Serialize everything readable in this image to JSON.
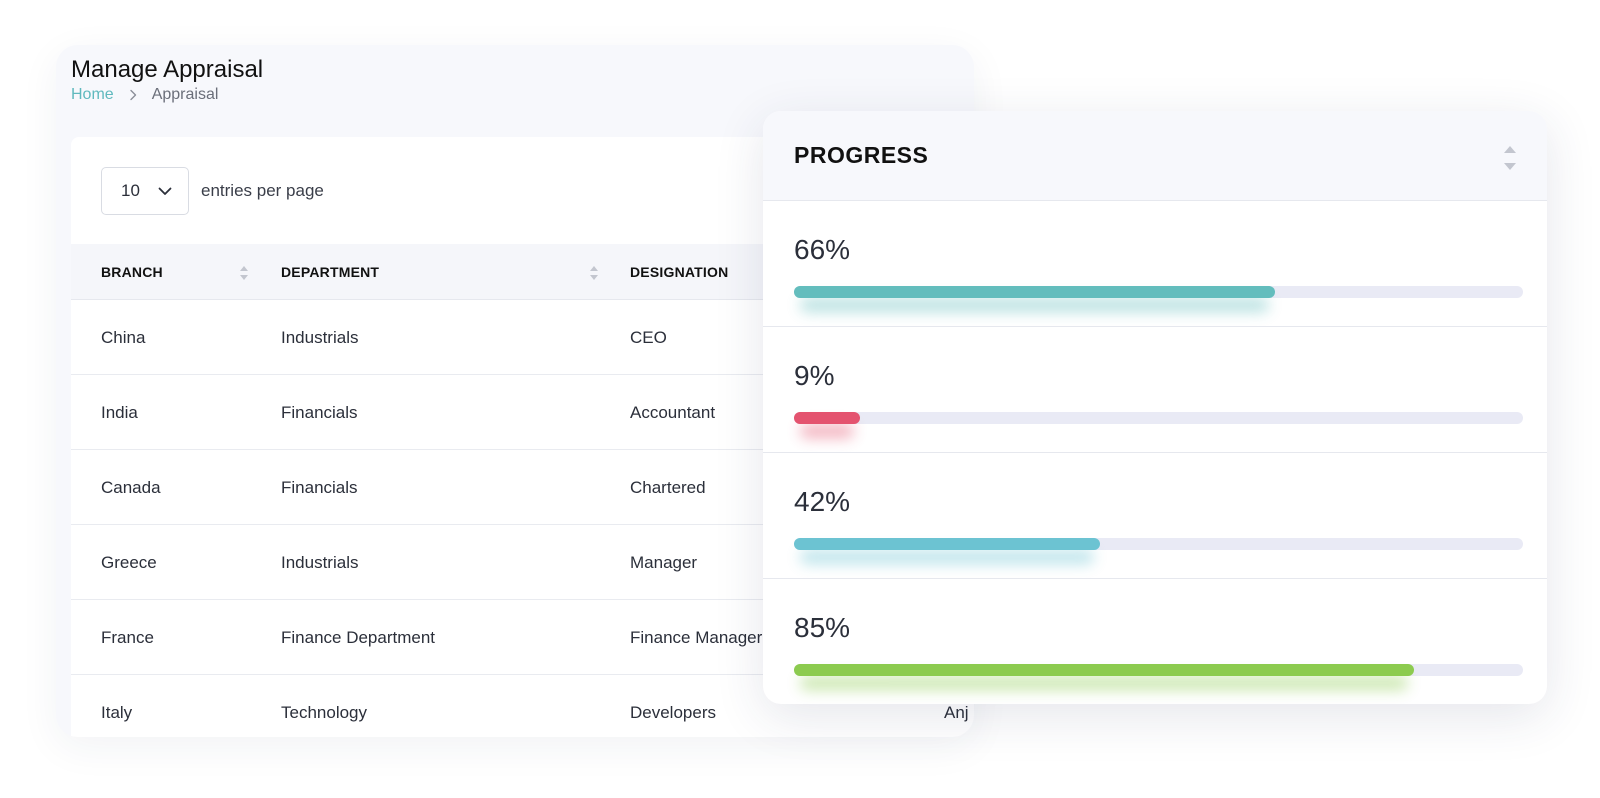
{
  "page": {
    "title": "Manage Appraisal",
    "breadcrumb": {
      "home": "Home",
      "current": "Appraisal"
    }
  },
  "entries": {
    "value": "10",
    "label": "entries per page"
  },
  "table": {
    "columns": [
      "BRANCH",
      "DEPARTMENT",
      "DESIGNATION"
    ],
    "rows": [
      {
        "branch": "China",
        "department": "Industrials",
        "designation": "CEO",
        "extra": ""
      },
      {
        "branch": "India",
        "department": "Financials",
        "designation": "Accountant",
        "extra": ""
      },
      {
        "branch": "Canada",
        "department": "Financials",
        "designation": "Chartered",
        "extra": ""
      },
      {
        "branch": "Greece",
        "department": "Industrials",
        "designation": "Manager",
        "extra": ""
      },
      {
        "branch": "France",
        "department": "Finance Department",
        "designation": "Finance Manager",
        "extra": ""
      },
      {
        "branch": "Italy",
        "department": "Technology",
        "designation": "Developers",
        "extra": "Anj"
      }
    ]
  },
  "progress": {
    "title": "PROGRESS",
    "items": [
      {
        "label": "66%",
        "value": 0.66,
        "color": "#63bdbd"
      },
      {
        "label": "9%",
        "value": 0.09,
        "color": "#e4536f"
      },
      {
        "label": "42%",
        "value": 0.42,
        "color": "#6cc3d2"
      },
      {
        "label": "85%",
        "value": 0.85,
        "color": "#8ccb4f"
      }
    ]
  }
}
